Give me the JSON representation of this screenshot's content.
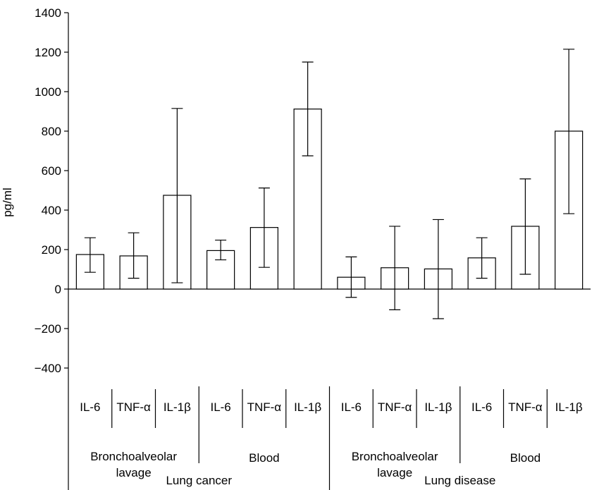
{
  "chart_data": {
    "type": "bar",
    "ylabel": "pg/ml",
    "ylim": [
      -400,
      1400
    ],
    "yticks": [
      1400,
      1200,
      1000,
      800,
      600,
      400,
      200,
      0,
      -200,
      -400
    ],
    "ytick_labels": [
      "1400",
      "1200",
      "1000",
      "800",
      "600",
      "400",
      "200",
      "0",
      "−200",
      "−400"
    ],
    "grid": false,
    "bars": [
      {
        "label": "IL-6",
        "value": 175,
        "err_low": 85,
        "err_high": 260
      },
      {
        "label": "TNF-α",
        "value": 168,
        "err_low": 55,
        "err_high": 285
      },
      {
        "label": "IL-1β",
        "value": 475,
        "err_low": 32,
        "err_high": 915
      },
      {
        "label": "IL-6",
        "value": 195,
        "err_low": 148,
        "err_high": 248
      },
      {
        "label": "TNF-α",
        "value": 312,
        "err_low": 110,
        "err_high": 512
      },
      {
        "label": "IL-1β",
        "value": 912,
        "err_low": 675,
        "err_high": 1150
      },
      {
        "label": "IL-6",
        "value": 60,
        "err_low": -42,
        "err_high": 163
      },
      {
        "label": "TNF-α",
        "value": 108,
        "err_low": -105,
        "err_high": 318
      },
      {
        "label": "IL-1β",
        "value": 102,
        "err_low": -150,
        "err_high": 352
      },
      {
        "label": "IL-6",
        "value": 158,
        "err_low": 55,
        "err_high": 260
      },
      {
        "label": "TNF-α",
        "value": 318,
        "err_low": 75,
        "err_high": 558
      },
      {
        "label": "IL-1β",
        "value": 800,
        "err_low": 382,
        "err_high": 1215
      }
    ],
    "sample_groups": [
      {
        "label_lines": [
          "Bronchoalveolar",
          "lavage"
        ],
        "start": 0,
        "end": 3
      },
      {
        "label_lines": [
          "Blood"
        ],
        "start": 3,
        "end": 6
      },
      {
        "label_lines": [
          "Bronchoalveolar",
          "lavage"
        ],
        "start": 6,
        "end": 9
      },
      {
        "label_lines": [
          "Blood"
        ],
        "start": 9,
        "end": 12
      }
    ],
    "conditions": [
      {
        "label": "Lung cancer",
        "start": 0,
        "end": 6
      },
      {
        "label": "Lung disease",
        "start": 6,
        "end": 12
      }
    ]
  }
}
